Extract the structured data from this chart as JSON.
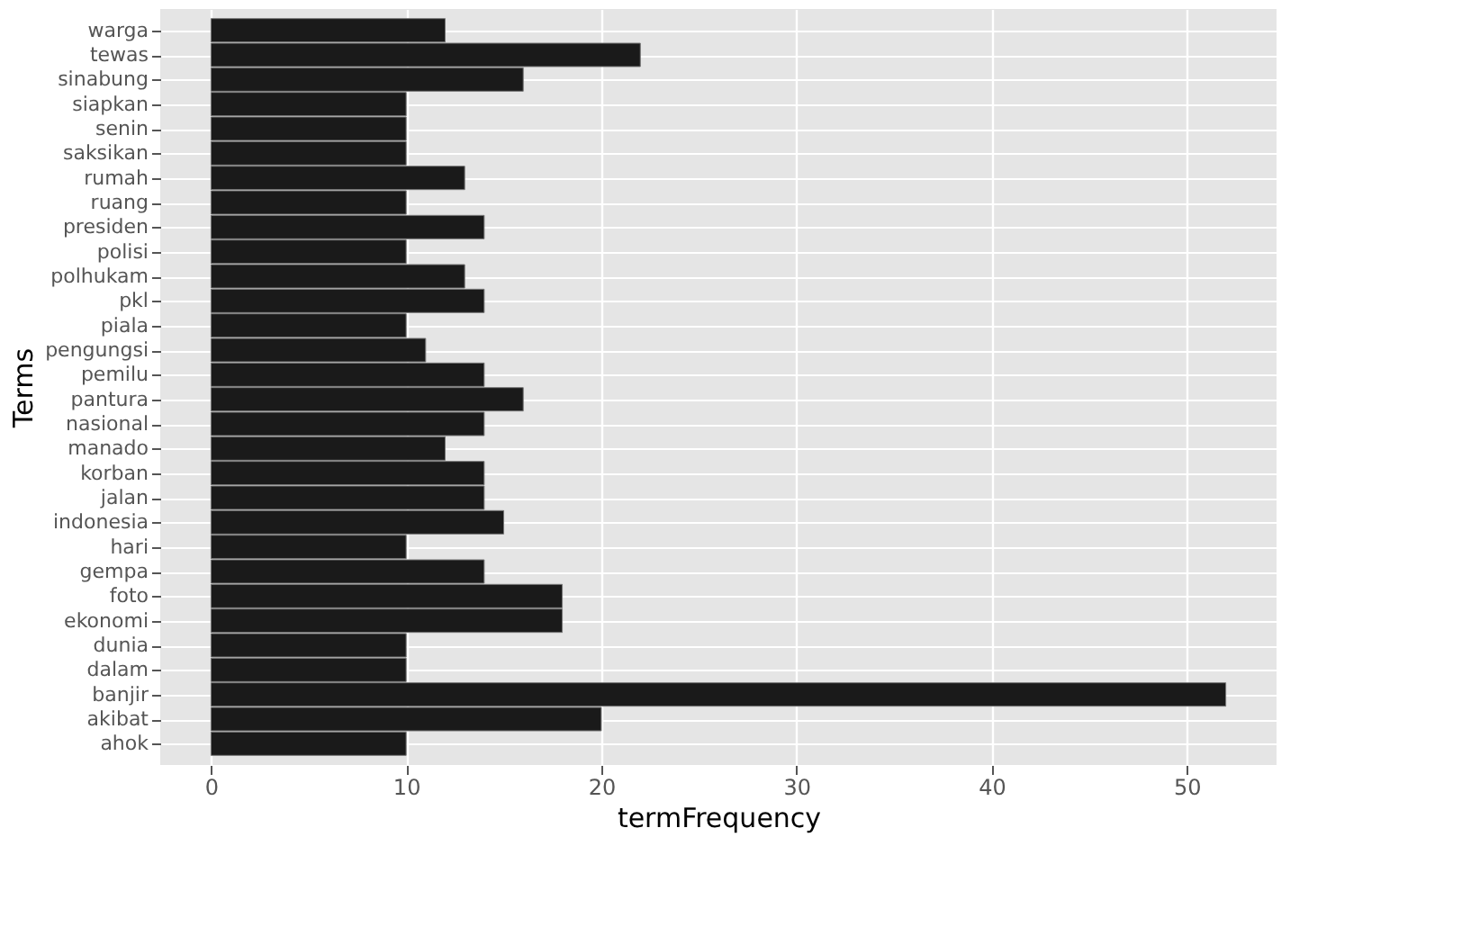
{
  "chart_data": {
    "type": "bar",
    "orientation": "horizontal",
    "xlabel": "termFrequency",
    "ylabel": "Terms",
    "categories": [
      "warga",
      "tewas",
      "sinabung",
      "siapkan",
      "senin",
      "saksikan",
      "rumah",
      "ruang",
      "presiden",
      "polisi",
      "polhukam",
      "pkl",
      "piala",
      "pengungsi",
      "pemilu",
      "pantura",
      "nasional",
      "manado",
      "korban",
      "jalan",
      "indonesia",
      "hari",
      "gempa",
      "foto",
      "ekonomi",
      "dunia",
      "dalam",
      "banjir",
      "akibat",
      "ahok"
    ],
    "values": [
      12,
      22,
      16,
      10,
      10,
      10,
      13,
      10,
      14,
      10,
      13,
      14,
      10,
      11,
      14,
      16,
      14,
      12,
      14,
      14,
      15,
      10,
      14,
      18,
      18,
      10,
      10,
      52,
      20,
      10
    ],
    "color": "#1a1a1a",
    "xlim": [
      -2.6,
      54.6
    ],
    "xticks": [
      0,
      10,
      20,
      30,
      40,
      50
    ],
    "grid": true
  }
}
